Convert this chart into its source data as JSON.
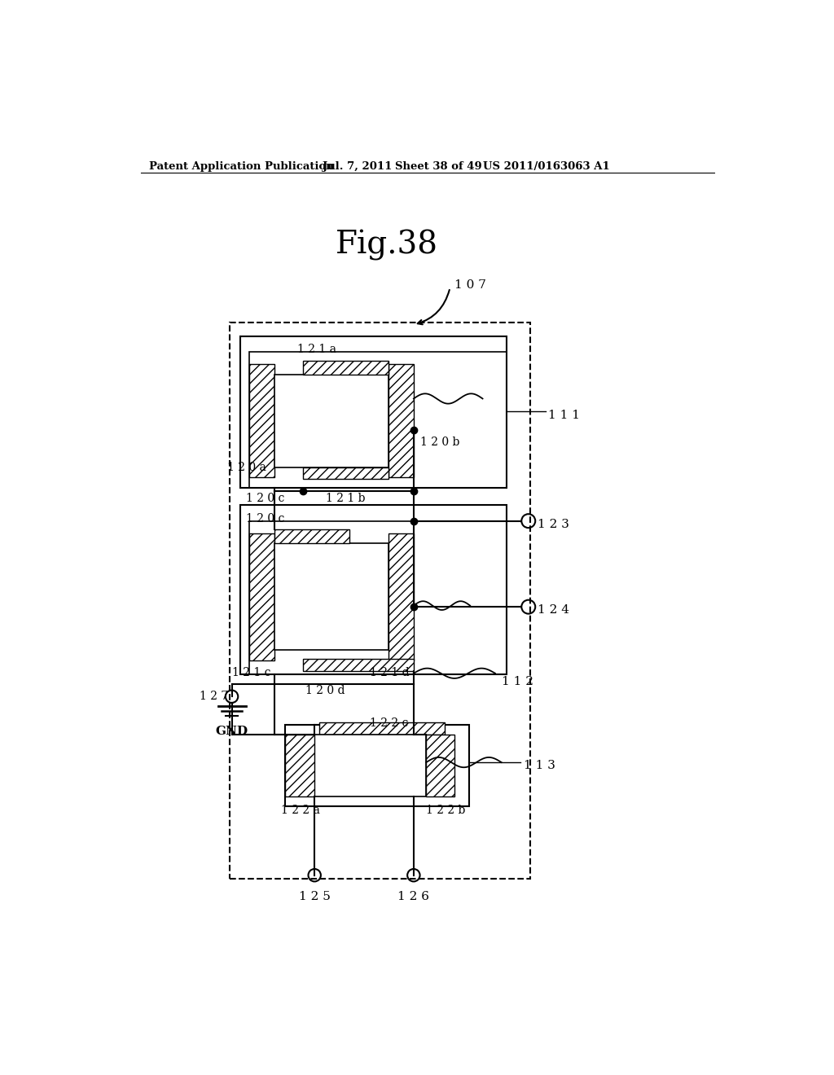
{
  "title": "Fig.38",
  "header_left": "Patent Application Publication",
  "header_mid": "Jul. 7, 2011   Sheet 38 of 49",
  "header_right": "US 2011/0163063 A1",
  "bg_color": "#ffffff",
  "line_color": "#000000"
}
